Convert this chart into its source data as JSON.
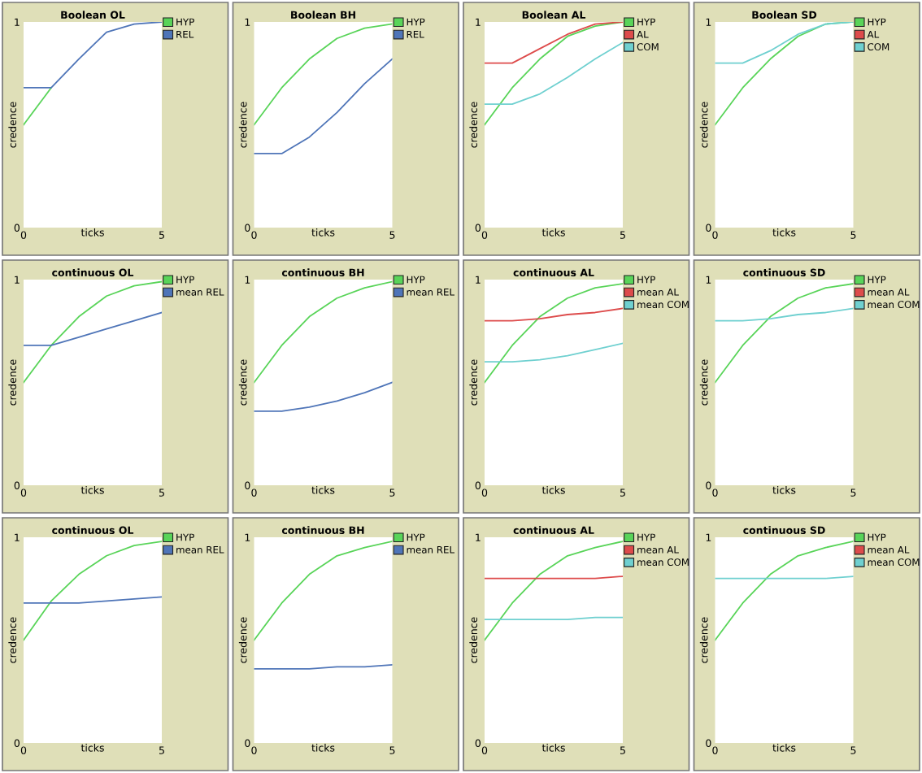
{
  "chart_data": [
    {
      "type": "line",
      "title": "Boolean OL",
      "xlabel": "ticks",
      "ylabel": "credence",
      "x": [
        0,
        1,
        2,
        3,
        4,
        5
      ],
      "xlim": [
        0,
        5
      ],
      "ylim": [
        0,
        1
      ],
      "xticks": [
        0,
        5
      ],
      "yticks": [
        0,
        1
      ],
      "legend": "right",
      "series": [
        {
          "name": "HYP",
          "color": "#59d459",
          "values": [
            0.5,
            0.68,
            null,
            null,
            null,
            null
          ]
        },
        {
          "name": "REL",
          "color": "#4f75b8",
          "values": [
            0.68,
            0.68,
            0.82,
            0.95,
            0.99,
            1.0
          ]
        }
      ]
    },
    {
      "type": "line",
      "title": "Boolean BH",
      "xlabel": "ticks",
      "ylabel": "credence",
      "x": [
        0,
        1,
        2,
        3,
        4,
        5
      ],
      "xlim": [
        0,
        5
      ],
      "ylim": [
        0,
        1
      ],
      "xticks": [
        0,
        5
      ],
      "yticks": [
        0,
        1
      ],
      "legend": "right",
      "series": [
        {
          "name": "HYP",
          "color": "#59d459",
          "values": [
            0.5,
            0.68,
            0.82,
            0.92,
            0.97,
            0.99
          ]
        },
        {
          "name": "REL",
          "color": "#4f75b8",
          "values": [
            0.36,
            0.36,
            0.44,
            0.56,
            0.7,
            0.82
          ]
        }
      ]
    },
    {
      "type": "line",
      "title": "Boolean AL",
      "xlabel": "ticks",
      "ylabel": "credence",
      "x": [
        0,
        1,
        2,
        3,
        4,
        5
      ],
      "xlim": [
        0,
        5
      ],
      "ylim": [
        0,
        1
      ],
      "xticks": [
        0,
        5
      ],
      "yticks": [
        0,
        1
      ],
      "legend": "right",
      "series": [
        {
          "name": "HYP",
          "color": "#59d459",
          "values": [
            0.5,
            0.68,
            0.82,
            0.93,
            0.98,
            1.0
          ]
        },
        {
          "name": "AL",
          "color": "#dd4b4b",
          "values": [
            0.8,
            0.8,
            0.87,
            0.94,
            0.99,
            1.0
          ]
        },
        {
          "name": "COM",
          "color": "#6fd0d0",
          "values": [
            0.6,
            0.6,
            0.65,
            0.73,
            0.82,
            0.9
          ]
        }
      ]
    },
    {
      "type": "line",
      "title": "Boolean SD",
      "xlabel": "ticks",
      "ylabel": "credence",
      "x": [
        0,
        1,
        2,
        3,
        4,
        5
      ],
      "xlim": [
        0,
        5
      ],
      "ylim": [
        0,
        1
      ],
      "xticks": [
        0,
        5
      ],
      "yticks": [
        0,
        1
      ],
      "legend": "right",
      "series": [
        {
          "name": "HYP",
          "color": "#59d459",
          "values": [
            0.5,
            0.68,
            0.82,
            0.93,
            0.99,
            1.0
          ]
        },
        {
          "name": "AL",
          "color": "#dd4b4b",
          "values": [
            null,
            null,
            null,
            null,
            null,
            null
          ]
        },
        {
          "name": "COM",
          "color": "#6fd0d0",
          "values": [
            0.8,
            0.8,
            0.86,
            0.94,
            0.99,
            1.0
          ]
        }
      ]
    },
    {
      "type": "line",
      "title": "continuous OL",
      "xlabel": "ticks",
      "ylabel": "credence",
      "x": [
        0,
        1,
        2,
        3,
        4,
        5
      ],
      "xlim": [
        0,
        5
      ],
      "ylim": [
        0,
        1
      ],
      "xticks": [
        0,
        5
      ],
      "yticks": [
        0,
        1
      ],
      "legend": "right",
      "series": [
        {
          "name": "HYP",
          "color": "#59d459",
          "values": [
            0.5,
            0.68,
            0.82,
            0.92,
            0.97,
            0.99
          ]
        },
        {
          "name": "mean REL",
          "color": "#4f75b8",
          "values": [
            0.68,
            0.68,
            0.72,
            0.76,
            0.8,
            0.84
          ]
        }
      ]
    },
    {
      "type": "line",
      "title": "continuous BH",
      "xlabel": "ticks",
      "ylabel": "credence",
      "x": [
        0,
        1,
        2,
        3,
        4,
        5
      ],
      "xlim": [
        0,
        5
      ],
      "ylim": [
        0,
        1
      ],
      "xticks": [
        0,
        5
      ],
      "yticks": [
        0,
        1
      ],
      "legend": "right",
      "series": [
        {
          "name": "HYP",
          "color": "#59d459",
          "values": [
            0.5,
            0.68,
            0.82,
            0.91,
            0.96,
            0.99
          ]
        },
        {
          "name": "mean REL",
          "color": "#4f75b8",
          "values": [
            0.36,
            0.36,
            0.38,
            0.41,
            0.45,
            0.5
          ]
        }
      ]
    },
    {
      "type": "line",
      "title": "continuous AL",
      "xlabel": "ticks",
      "ylabel": "credence",
      "x": [
        0,
        1,
        2,
        3,
        4,
        5
      ],
      "xlim": [
        0,
        5
      ],
      "ylim": [
        0,
        1
      ],
      "xticks": [
        0,
        5
      ],
      "yticks": [
        0,
        1
      ],
      "legend": "right",
      "series": [
        {
          "name": "HYP",
          "color": "#59d459",
          "values": [
            0.5,
            0.68,
            0.82,
            0.91,
            0.96,
            0.98
          ]
        },
        {
          "name": "mean AL",
          "color": "#dd4b4b",
          "values": [
            0.8,
            0.8,
            0.81,
            0.83,
            0.84,
            0.86
          ]
        },
        {
          "name": "mean COM",
          "color": "#6fd0d0",
          "values": [
            0.6,
            0.6,
            0.61,
            0.63,
            0.66,
            0.69
          ]
        }
      ]
    },
    {
      "type": "line",
      "title": "continuous SD",
      "xlabel": "ticks",
      "ylabel": "credence",
      "x": [
        0,
        1,
        2,
        3,
        4,
        5
      ],
      "xlim": [
        0,
        5
      ],
      "ylim": [
        0,
        1
      ],
      "xticks": [
        0,
        5
      ],
      "yticks": [
        0,
        1
      ],
      "legend": "right",
      "series": [
        {
          "name": "HYP",
          "color": "#59d459",
          "values": [
            0.5,
            0.68,
            0.82,
            0.91,
            0.96,
            0.98
          ]
        },
        {
          "name": "mean AL",
          "color": "#dd4b4b",
          "values": [
            null,
            null,
            null,
            null,
            null,
            null
          ]
        },
        {
          "name": "mean COM",
          "color": "#6fd0d0",
          "values": [
            0.8,
            0.8,
            0.81,
            0.83,
            0.84,
            0.86
          ]
        }
      ]
    },
    {
      "type": "line",
      "title": "continuous OL",
      "xlabel": "ticks",
      "ylabel": "credence",
      "x": [
        0,
        1,
        2,
        3,
        4,
        5
      ],
      "xlim": [
        0,
        5
      ],
      "ylim": [
        0,
        1
      ],
      "xticks": [
        0,
        5
      ],
      "yticks": [
        0,
        1
      ],
      "legend": "right",
      "series": [
        {
          "name": "HYP",
          "color": "#59d459",
          "values": [
            0.5,
            0.69,
            0.82,
            0.91,
            0.96,
            0.98
          ]
        },
        {
          "name": "mean REL",
          "color": "#4f75b8",
          "values": [
            0.68,
            0.68,
            0.68,
            0.69,
            0.7,
            0.71
          ]
        }
      ]
    },
    {
      "type": "line",
      "title": "continuous BH",
      "xlabel": "ticks",
      "ylabel": "credence",
      "x": [
        0,
        1,
        2,
        3,
        4,
        5
      ],
      "xlim": [
        0,
        5
      ],
      "ylim": [
        0,
        1
      ],
      "xticks": [
        0,
        5
      ],
      "yticks": [
        0,
        1
      ],
      "legend": "right",
      "series": [
        {
          "name": "HYP",
          "color": "#59d459",
          "values": [
            0.5,
            0.68,
            0.82,
            0.91,
            0.95,
            0.98
          ]
        },
        {
          "name": "mean REL",
          "color": "#4f75b8",
          "values": [
            0.36,
            0.36,
            0.36,
            0.37,
            0.37,
            0.38
          ]
        }
      ]
    },
    {
      "type": "line",
      "title": "continuous AL",
      "xlabel": "ticks",
      "ylabel": "credence",
      "x": [
        0,
        1,
        2,
        3,
        4,
        5
      ],
      "xlim": [
        0,
        5
      ],
      "ylim": [
        0,
        1
      ],
      "xticks": [
        0,
        5
      ],
      "yticks": [
        0,
        1
      ],
      "legend": "right",
      "series": [
        {
          "name": "HYP",
          "color": "#59d459",
          "values": [
            0.5,
            0.68,
            0.82,
            0.91,
            0.95,
            0.98
          ]
        },
        {
          "name": "mean AL",
          "color": "#dd4b4b",
          "values": [
            0.8,
            0.8,
            0.8,
            0.8,
            0.8,
            0.81
          ]
        },
        {
          "name": "mean COM",
          "color": "#6fd0d0",
          "values": [
            0.6,
            0.6,
            0.6,
            0.6,
            0.61,
            0.61
          ]
        }
      ]
    },
    {
      "type": "line",
      "title": "continuous SD",
      "xlabel": "ticks",
      "ylabel": "credence",
      "x": [
        0,
        1,
        2,
        3,
        4,
        5
      ],
      "xlim": [
        0,
        5
      ],
      "ylim": [
        0,
        1
      ],
      "xticks": [
        0,
        5
      ],
      "yticks": [
        0,
        1
      ],
      "legend": "right",
      "series": [
        {
          "name": "HYP",
          "color": "#59d459",
          "values": [
            0.5,
            0.68,
            0.82,
            0.91,
            0.95,
            0.98
          ]
        },
        {
          "name": "mean AL",
          "color": "#dd4b4b",
          "values": [
            null,
            null,
            null,
            null,
            null,
            null
          ]
        },
        {
          "name": "mean COM",
          "color": "#6fd0d0",
          "values": [
            0.8,
            0.8,
            0.8,
            0.8,
            0.8,
            0.81
          ]
        }
      ]
    }
  ]
}
